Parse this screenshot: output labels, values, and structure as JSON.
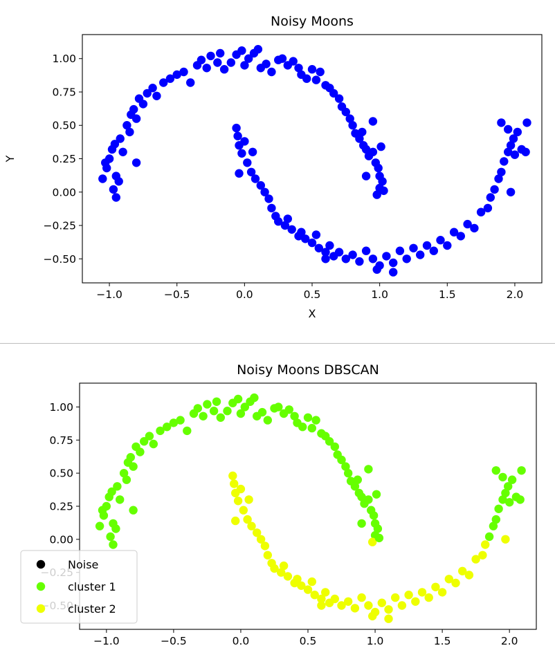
{
  "chart_data": [
    {
      "type": "scatter",
      "title": "Noisy Moons",
      "xlabel": "X",
      "ylabel": "Y",
      "xlim": [
        -1.2,
        2.2
      ],
      "ylim": [
        -0.68,
        1.18
      ],
      "xticks": [
        "−1.0",
        "−0.5",
        "0.0",
        "0.5",
        "1.0",
        "1.5",
        "2.0"
      ],
      "yticks": [
        "−0.50",
        "−0.25",
        "0.00",
        "0.25",
        "0.50",
        "0.75",
        "1.00"
      ],
      "xtick_values": [
        -1.0,
        -0.5,
        0.0,
        0.5,
        1.0,
        1.5,
        2.0
      ],
      "ytick_values": [
        -0.5,
        -0.25,
        0.0,
        0.25,
        0.5,
        0.75,
        1.0
      ],
      "grid": false,
      "series": [
        {
          "color": "#0000ff",
          "points": [
            [
              -1.05,
              0.1
            ],
            [
              -1.02,
              0.18
            ],
            [
              -1.0,
              0.25
            ],
            [
              -0.98,
              0.32
            ],
            [
              -0.96,
              0.36
            ],
            [
              -0.95,
              0.12
            ],
            [
              -0.93,
              0.08
            ],
            [
              -0.97,
              0.02
            ],
            [
              -0.95,
              -0.04
            ],
            [
              -1.03,
              0.22
            ],
            [
              -0.92,
              0.4
            ],
            [
              -0.9,
              0.3
            ],
            [
              -0.87,
              0.5
            ],
            [
              -0.85,
              0.45
            ],
            [
              -0.84,
              0.58
            ],
            [
              -0.82,
              0.62
            ],
            [
              -0.8,
              0.55
            ],
            [
              -0.78,
              0.7
            ],
            [
              -0.75,
              0.66
            ],
            [
              -0.72,
              0.74
            ],
            [
              -0.8,
              0.22
            ],
            [
              -0.68,
              0.78
            ],
            [
              -0.65,
              0.72
            ],
            [
              -0.6,
              0.82
            ],
            [
              -0.55,
              0.85
            ],
            [
              -0.5,
              0.88
            ],
            [
              -0.45,
              0.9
            ],
            [
              -0.4,
              0.82
            ],
            [
              -0.35,
              0.95
            ],
            [
              -0.32,
              0.99
            ],
            [
              -0.28,
              0.93
            ],
            [
              -0.25,
              1.02
            ],
            [
              -0.2,
              0.97
            ],
            [
              -0.18,
              1.04
            ],
            [
              -0.15,
              0.92
            ],
            [
              -0.1,
              0.97
            ],
            [
              -0.06,
              1.03
            ],
            [
              -0.02,
              1.06
            ],
            [
              0.0,
              0.95
            ],
            [
              0.03,
              1.0
            ],
            [
              0.07,
              1.04
            ],
            [
              0.1,
              1.07
            ],
            [
              0.12,
              0.93
            ],
            [
              0.16,
              0.96
            ],
            [
              0.2,
              0.9
            ],
            [
              0.25,
              0.99
            ],
            [
              0.28,
              1.0
            ],
            [
              0.32,
              0.95
            ],
            [
              0.36,
              0.98
            ],
            [
              0.4,
              0.93
            ],
            [
              0.42,
              0.88
            ],
            [
              0.46,
              0.85
            ],
            [
              0.5,
              0.92
            ],
            [
              0.53,
              0.84
            ],
            [
              0.56,
              0.9
            ],
            [
              0.6,
              0.8
            ],
            [
              0.63,
              0.78
            ],
            [
              0.66,
              0.74
            ],
            [
              0.7,
              0.7
            ],
            [
              0.72,
              0.64
            ],
            [
              0.75,
              0.6
            ],
            [
              0.78,
              0.55
            ],
            [
              0.8,
              0.5
            ],
            [
              0.82,
              0.44
            ],
            [
              0.85,
              0.4
            ],
            [
              0.87,
              0.45
            ],
            [
              0.88,
              0.35
            ],
            [
              0.9,
              0.32
            ],
            [
              0.92,
              0.27
            ],
            [
              0.95,
              0.3
            ],
            [
              0.97,
              0.22
            ],
            [
              0.99,
              0.18
            ],
            [
              1.0,
              0.12
            ],
            [
              1.02,
              0.08
            ],
            [
              1.0,
              0.03
            ],
            [
              0.98,
              -0.02
            ],
            [
              1.03,
              0.01
            ],
            [
              0.95,
              0.53
            ],
            [
              1.01,
              0.34
            ],
            [
              0.9,
              0.12
            ],
            [
              -0.06,
              0.48
            ],
            [
              -0.05,
              0.42
            ],
            [
              -0.04,
              0.35
            ],
            [
              -0.02,
              0.29
            ],
            [
              0.0,
              0.38
            ],
            [
              0.02,
              0.22
            ],
            [
              0.05,
              0.15
            ],
            [
              0.06,
              0.3
            ],
            [
              0.08,
              0.1
            ],
            [
              -0.04,
              0.14
            ],
            [
              0.12,
              0.05
            ],
            [
              0.15,
              0.0
            ],
            [
              0.18,
              -0.05
            ],
            [
              0.2,
              -0.12
            ],
            [
              0.23,
              -0.18
            ],
            [
              0.25,
              -0.22
            ],
            [
              0.3,
              -0.25
            ],
            [
              0.32,
              -0.2
            ],
            [
              0.35,
              -0.28
            ],
            [
              0.4,
              -0.33
            ],
            [
              0.42,
              -0.3
            ],
            [
              0.45,
              -0.35
            ],
            [
              0.5,
              -0.38
            ],
            [
              0.53,
              -0.32
            ],
            [
              0.55,
              -0.42
            ],
            [
              0.6,
              -0.45
            ],
            [
              0.63,
              -0.4
            ],
            [
              0.66,
              -0.48
            ],
            [
              0.7,
              -0.45
            ],
            [
              0.75,
              -0.5
            ],
            [
              0.8,
              -0.47
            ],
            [
              0.85,
              -0.52
            ],
            [
              0.9,
              -0.44
            ],
            [
              0.95,
              -0.5
            ],
            [
              1.0,
              -0.55
            ],
            [
              1.05,
              -0.48
            ],
            [
              1.1,
              -0.53
            ],
            [
              1.15,
              -0.44
            ],
            [
              1.2,
              -0.5
            ],
            [
              1.25,
              -0.42
            ],
            [
              1.3,
              -0.47
            ],
            [
              1.35,
              -0.4
            ],
            [
              1.4,
              -0.44
            ],
            [
              1.45,
              -0.36
            ],
            [
              1.5,
              -0.4
            ],
            [
              1.55,
              -0.3
            ],
            [
              1.6,
              -0.33
            ],
            [
              1.65,
              -0.24
            ],
            [
              1.7,
              -0.27
            ],
            [
              1.75,
              -0.15
            ],
            [
              1.8,
              -0.12
            ],
            [
              1.82,
              -0.04
            ],
            [
              1.85,
              0.02
            ],
            [
              1.88,
              0.1
            ],
            [
              1.9,
              0.15
            ],
            [
              1.92,
              0.23
            ],
            [
              1.95,
              0.3
            ],
            [
              1.97,
              0.35
            ],
            [
              1.99,
              0.4
            ],
            [
              2.0,
              0.28
            ],
            [
              2.02,
              0.45
            ],
            [
              1.95,
              0.47
            ],
            [
              2.05,
              0.32
            ],
            [
              2.09,
              0.52
            ],
            [
              2.08,
              0.3
            ],
            [
              1.97,
              0.0
            ],
            [
              1.9,
              0.52
            ],
            [
              1.1,
              -0.6
            ],
            [
              0.98,
              -0.58
            ],
            [
              0.6,
              -0.5
            ]
          ]
        }
      ]
    },
    {
      "type": "scatter",
      "title": "Noisy Moons DBSCAN",
      "xlabel": "",
      "ylabel": "",
      "xlim": [
        -1.2,
        2.2
      ],
      "ylim": [
        -0.68,
        1.18
      ],
      "xticks": [
        "−1.0",
        "−0.5",
        "0.0",
        "0.5",
        "1.0",
        "1.5",
        "2.0"
      ],
      "yticks": [
        "−0.50",
        "−0.25",
        "0.00",
        "0.25",
        "0.50",
        "0.75",
        "1.00"
      ],
      "xtick_values": [
        -1.0,
        -0.5,
        0.0,
        0.5,
        1.0,
        1.5,
        2.0
      ],
      "ytick_values": [
        -0.5,
        -0.25,
        0.0,
        0.25,
        0.5,
        0.75,
        1.0
      ],
      "grid": false,
      "legend_position": "lower-left",
      "legend": [
        {
          "name": "Noise",
          "color": "#000000"
        },
        {
          "name": "cluster 1",
          "color": "#66ff00"
        },
        {
          "name": "cluster 2",
          "color": "#eeff00"
        }
      ],
      "series": [
        {
          "name": "cluster 1",
          "color": "#66ff00",
          "source": "upper"
        },
        {
          "name": "cluster 2",
          "color": "#eeff00",
          "source": "lower"
        }
      ]
    }
  ]
}
